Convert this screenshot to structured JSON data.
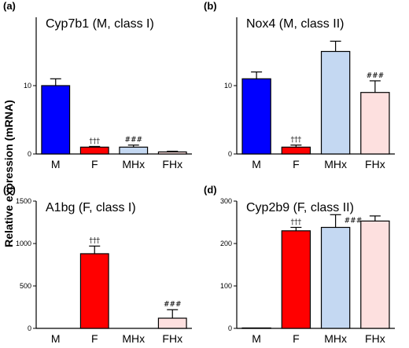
{
  "figure": {
    "ylabel": "Relative expression (mRNA)"
  },
  "chart_data": [
    {
      "type": "bar",
      "panel": "(a)",
      "title": "Cyp7b1 (M, class I)",
      "categories": [
        "M",
        "F",
        "MHx",
        "FHx"
      ],
      "values": [
        10.0,
        1.0,
        1.0,
        0.3
      ],
      "errors": [
        1.0,
        0.1,
        0.3,
        0.1
      ],
      "colors": [
        "#0000ff",
        "#ff0000",
        "#c4d8f2",
        "#fde0df"
      ],
      "annotations": [
        "",
        "†††",
        "###",
        ""
      ],
      "ylim": [
        0,
        20
      ],
      "yticks": [
        0,
        10
      ]
    },
    {
      "type": "bar",
      "panel": "(b)",
      "title": "Nox4 (M, class II)",
      "categories": [
        "M",
        "F",
        "MHx",
        "FHx"
      ],
      "values": [
        11.0,
        1.0,
        15.0,
        9.0
      ],
      "errors": [
        1.0,
        0.3,
        1.5,
        1.7
      ],
      "colors": [
        "#0000ff",
        "#ff0000",
        "#c4d8f2",
        "#fde0df"
      ],
      "annotations": [
        "",
        "†††",
        "",
        "###"
      ],
      "ylim": [
        0,
        20
      ],
      "yticks": [
        0,
        10
      ]
    },
    {
      "type": "bar",
      "panel": "(c)",
      "title": "A1bg (F, class I)",
      "categories": [
        "M",
        "F",
        "MHx",
        "FHx"
      ],
      "values": [
        0,
        880,
        0,
        120
      ],
      "errors": [
        0,
        90,
        0,
        100
      ],
      "colors": [
        "#0000ff",
        "#ff0000",
        "#c4d8f2",
        "#fde0df"
      ],
      "annotations": [
        "",
        "†††",
        "",
        "###"
      ],
      "ylim": [
        0,
        1500
      ],
      "yticks": [
        0,
        500,
        1000,
        1500
      ]
    },
    {
      "type": "bar",
      "panel": "(d)",
      "title": "Cyp2b9 (F, class II)",
      "categories": [
        "M",
        "F",
        "MHx",
        "FHx"
      ],
      "values": [
        1,
        230,
        238,
        253
      ],
      "errors": [
        0,
        8,
        30,
        12
      ],
      "colors": [
        "#0000ff",
        "#ff0000",
        "#c4d8f2",
        "#fde0df"
      ],
      "annotations": [
        "",
        "†††",
        "###",
        ""
      ],
      "ylim": [
        0,
        300
      ],
      "yticks": [
        0,
        100,
        200,
        300
      ]
    }
  ]
}
